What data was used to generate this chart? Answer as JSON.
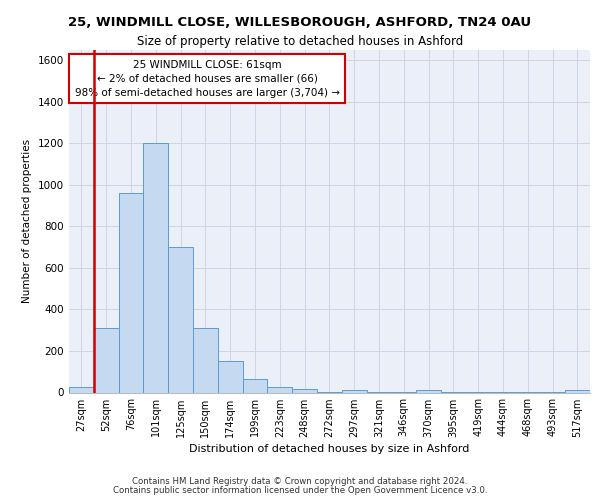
{
  "title1": "25, WINDMILL CLOSE, WILLESBOROUGH, ASHFORD, TN24 0AU",
  "title2": "Size of property relative to detached houses in Ashford",
  "xlabel": "Distribution of detached houses by size in Ashford",
  "ylabel": "Number of detached properties",
  "footer1": "Contains HM Land Registry data © Crown copyright and database right 2024.",
  "footer2": "Contains public sector information licensed under the Open Government Licence v3.0.",
  "bar_color": "#c5d9f0",
  "bar_edge_color": "#5b9bd5",
  "bin_labels": [
    "27sqm",
    "52sqm",
    "76sqm",
    "101sqm",
    "125sqm",
    "150sqm",
    "174sqm",
    "199sqm",
    "223sqm",
    "248sqm",
    "272sqm",
    "297sqm",
    "321sqm",
    "346sqm",
    "370sqm",
    "395sqm",
    "419sqm",
    "444sqm",
    "468sqm",
    "493sqm",
    "517sqm"
  ],
  "bar_heights": [
    25,
    310,
    960,
    1200,
    700,
    310,
    150,
    65,
    25,
    15,
    2,
    10,
    2,
    2,
    10,
    2,
    2,
    2,
    2,
    2,
    10
  ],
  "ylim": [
    0,
    1650
  ],
  "yticks": [
    0,
    200,
    400,
    600,
    800,
    1000,
    1200,
    1400,
    1600
  ],
  "property_bin_index": 1,
  "annotation_title": "25 WINDMILL CLOSE: 61sqm",
  "annotation_line1": "← 2% of detached houses are smaller (66)",
  "annotation_line2": "98% of semi-detached houses are larger (3,704) →",
  "red_line_color": "#cc0000",
  "grid_color": "#cdd5e5",
  "background_color": "#eaeff8"
}
